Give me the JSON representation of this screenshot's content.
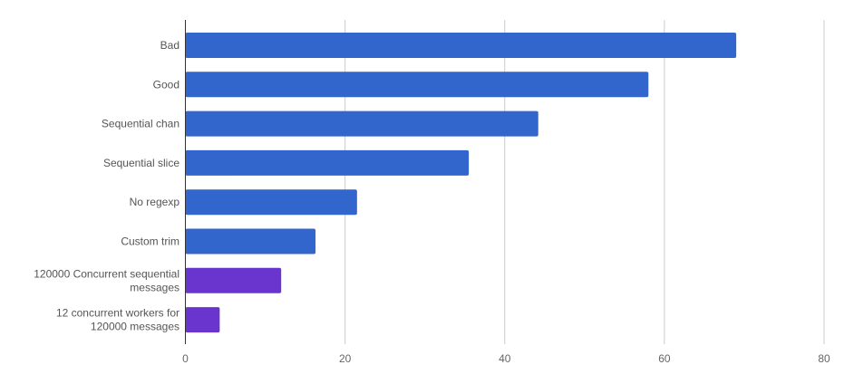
{
  "chart_data": {
    "type": "bar",
    "orientation": "horizontal",
    "title": "",
    "xlabel": "",
    "ylabel": "",
    "categories": [
      [
        "Bad"
      ],
      [
        "Good"
      ],
      [
        "Sequential chan"
      ],
      [
        "Sequential slice"
      ],
      [
        "No regexp"
      ],
      [
        "Custom trim"
      ],
      [
        "120000 Concurrent sequential",
        "messages"
      ],
      [
        "12 concurrent workers for",
        "120000 messages"
      ]
    ],
    "values": [
      69,
      58,
      44.2,
      35.5,
      21.5,
      16.3,
      12,
      4.3
    ],
    "bar_colors": [
      "#3366cc",
      "#3366cc",
      "#3366cc",
      "#3366cc",
      "#3366cc",
      "#3366cc",
      "#6a35cf",
      "#6a35cf"
    ],
    "xlim": [
      0,
      80
    ],
    "x_ticks": [
      0,
      20,
      40,
      60,
      80
    ],
    "grid": true,
    "legend": "none"
  }
}
